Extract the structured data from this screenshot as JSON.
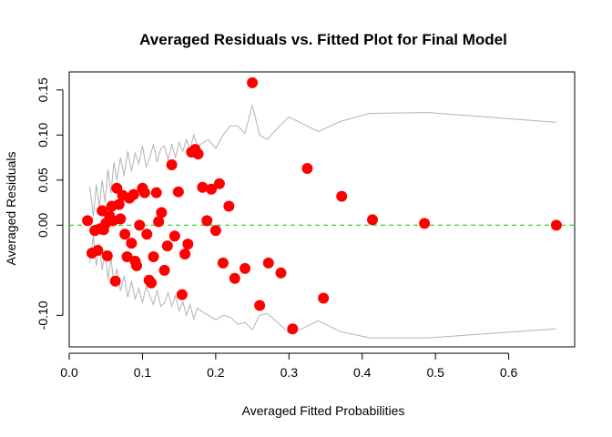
{
  "chart_data": {
    "type": "scatter",
    "title": "Averaged Residuals vs. Fitted Plot for Final Model",
    "xlabel": "Averaged Fitted Probabilities",
    "ylabel": "Averaged Residuals",
    "xlim": [
      0.0,
      0.69
    ],
    "ylim": [
      -0.135,
      0.17
    ],
    "x_ticks": [
      "0.0",
      "0.1",
      "0.2",
      "0.3",
      "0.4",
      "0.5",
      "0.6"
    ],
    "x_tick_values": [
      0.0,
      0.1,
      0.2,
      0.3,
      0.4,
      0.5,
      0.6
    ],
    "y_ticks": [
      "-0.10",
      "0.00",
      "0.05",
      "0.10",
      "0.15"
    ],
    "y_tick_values": [
      -0.1,
      0.0,
      0.05,
      0.1,
      0.15
    ],
    "grid": false,
    "colors": {
      "points": "#ff0000",
      "reference_line": "#22cc22",
      "envelope": "#b3b3b3"
    },
    "reference_line_y": 0.0,
    "points": {
      "x": [
        0.025,
        0.031,
        0.035,
        0.039,
        0.042,
        0.045,
        0.047,
        0.05,
        0.052,
        0.055,
        0.058,
        0.06,
        0.063,
        0.065,
        0.068,
        0.07,
        0.073,
        0.076,
        0.079,
        0.082,
        0.085,
        0.088,
        0.09,
        0.092,
        0.096,
        0.1,
        0.103,
        0.106,
        0.109,
        0.112,
        0.115,
        0.119,
        0.122,
        0.126,
        0.13,
        0.134,
        0.14,
        0.144,
        0.149,
        0.154,
        0.158,
        0.162,
        0.167,
        0.172,
        0.176,
        0.182,
        0.188,
        0.194,
        0.2,
        0.205,
        0.21,
        0.218,
        0.226,
        0.24,
        0.25,
        0.26,
        0.272,
        0.289,
        0.305,
        0.325,
        0.347,
        0.372,
        0.414,
        0.485,
        0.665
      ],
      "y": [
        0.005,
        -0.031,
        -0.006,
        -0.028,
        -0.004,
        0.016,
        -0.005,
        0.002,
        -0.034,
        0.01,
        0.021,
        0.005,
        -0.062,
        0.041,
        0.023,
        0.007,
        0.033,
        -0.01,
        -0.035,
        0.03,
        -0.02,
        0.034,
        -0.04,
        -0.045,
        0.0,
        0.041,
        0.036,
        -0.01,
        -0.061,
        -0.064,
        -0.035,
        0.036,
        0.004,
        0.014,
        -0.05,
        -0.023,
        0.067,
        -0.012,
        0.037,
        -0.077,
        -0.032,
        -0.021,
        0.081,
        0.084,
        0.079,
        0.042,
        0.005,
        0.04,
        -0.006,
        0.046,
        -0.042,
        0.021,
        -0.059,
        -0.048,
        0.158,
        -0.089,
        -0.042,
        -0.053,
        -0.115,
        0.063,
        -0.081,
        0.032,
        0.006,
        0.002,
        0.0
      ]
    },
    "envelope_upper": {
      "x": [
        0.028,
        0.033,
        0.037,
        0.041,
        0.045,
        0.049,
        0.053,
        0.057,
        0.061,
        0.065,
        0.07,
        0.075,
        0.08,
        0.085,
        0.09,
        0.095,
        0.1,
        0.105,
        0.11,
        0.115,
        0.12,
        0.125,
        0.13,
        0.135,
        0.14,
        0.145,
        0.15,
        0.155,
        0.16,
        0.165,
        0.17,
        0.175,
        0.18,
        0.19,
        0.2,
        0.21,
        0.22,
        0.23,
        0.24,
        0.25,
        0.26,
        0.27,
        0.285,
        0.3,
        0.32,
        0.34,
        0.37,
        0.41,
        0.49,
        0.665
      ],
      "y": [
        0.043,
        0.01,
        0.045,
        0.02,
        0.05,
        0.025,
        0.062,
        0.035,
        0.07,
        0.05,
        0.075,
        0.055,
        0.082,
        0.06,
        0.08,
        0.068,
        0.088,
        0.065,
        0.075,
        0.09,
        0.07,
        0.085,
        0.088,
        0.072,
        0.09,
        0.075,
        0.092,
        0.082,
        0.095,
        0.083,
        0.1,
        0.088,
        0.09,
        0.095,
        0.085,
        0.1,
        0.11,
        0.11,
        0.102,
        0.133,
        0.1,
        0.095,
        0.108,
        0.12,
        0.112,
        0.104,
        0.115,
        0.124,
        0.125,
        0.114
      ]
    },
    "envelope_lower": {
      "x": [
        0.028,
        0.033,
        0.037,
        0.041,
        0.045,
        0.049,
        0.053,
        0.057,
        0.061,
        0.065,
        0.07,
        0.075,
        0.08,
        0.085,
        0.09,
        0.095,
        0.1,
        0.105,
        0.11,
        0.115,
        0.12,
        0.125,
        0.13,
        0.135,
        0.14,
        0.145,
        0.15,
        0.155,
        0.16,
        0.165,
        0.17,
        0.175,
        0.18,
        0.19,
        0.2,
        0.21,
        0.22,
        0.23,
        0.24,
        0.25,
        0.26,
        0.27,
        0.285,
        0.3,
        0.32,
        0.34,
        0.37,
        0.41,
        0.49,
        0.665
      ],
      "y": [
        -0.042,
        -0.012,
        -0.045,
        -0.02,
        -0.05,
        -0.028,
        -0.06,
        -0.035,
        -0.068,
        -0.048,
        -0.073,
        -0.056,
        -0.08,
        -0.062,
        -0.082,
        -0.07,
        -0.086,
        -0.068,
        -0.078,
        -0.088,
        -0.072,
        -0.09,
        -0.086,
        -0.075,
        -0.09,
        -0.078,
        -0.095,
        -0.085,
        -0.1,
        -0.088,
        -0.104,
        -0.092,
        -0.095,
        -0.1,
        -0.105,
        -0.1,
        -0.102,
        -0.11,
        -0.108,
        -0.116,
        -0.1,
        -0.098,
        -0.108,
        -0.12,
        -0.114,
        -0.106,
        -0.118,
        -0.125,
        -0.125,
        -0.115
      ]
    }
  }
}
